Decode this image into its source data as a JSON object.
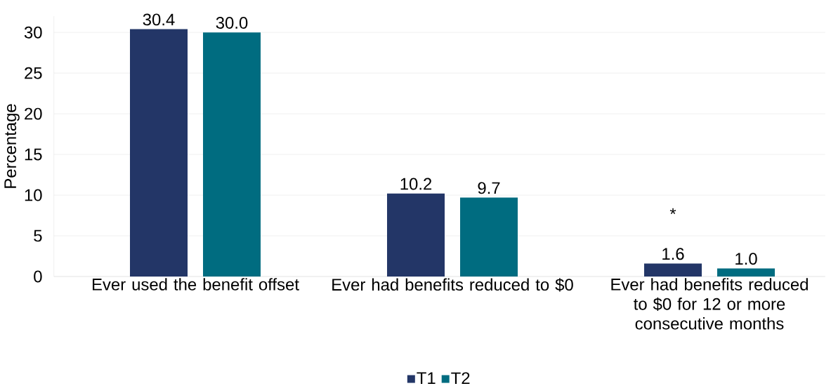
{
  "chart_data": {
    "type": "bar",
    "ylabel": "Percentage",
    "categories": [
      "Ever used the benefit offset",
      "Ever had benefits reduced to $0",
      "Ever had benefits reduced to $0 for 12 or more consecutive months"
    ],
    "series": [
      {
        "name": "T1",
        "color": "#233667",
        "values": [
          30.4,
          10.2,
          1.6
        ],
        "value_labels": [
          "30.4",
          "10.2",
          "1.6"
        ]
      },
      {
        "name": "T2",
        "color": "#006c80",
        "values": [
          30.0,
          9.7,
          1.0
        ],
        "value_labels": [
          "30.0",
          "9.7",
          "1.0"
        ]
      }
    ],
    "annotations": [
      "*"
    ],
    "ylim": [
      0,
      32
    ],
    "yticks": [
      0,
      5,
      10,
      15,
      20,
      25,
      30
    ],
    "grid": "y",
    "legend": "bottom"
  }
}
